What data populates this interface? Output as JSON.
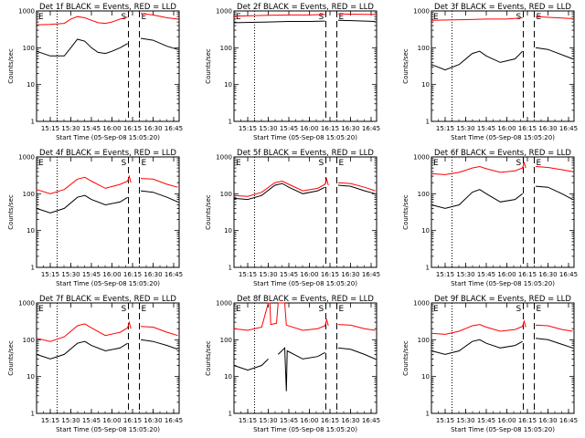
{
  "chart_data": {
    "type": "line",
    "x_ticks": [
      "15:15",
      "15:30",
      "15:45",
      "16:00",
      "16:15",
      "16:30",
      "16:45"
    ],
    "x_range": [
      "15:05",
      "16:49"
    ],
    "y_range": [
      1,
      1000
    ],
    "y_scale": "log",
    "y_ticks": [
      "1",
      "10",
      "100",
      "1000"
    ],
    "y_label": "Counts/sec",
    "x_label": "Start Time (05-Sep-08 15:05:20)",
    "vertical_lines": [
      {
        "time": "15:20",
        "style": "dotted"
      },
      {
        "time": "16:12",
        "style": "dashed",
        "label": "S"
      },
      {
        "time": "16:20",
        "style": "dashed",
        "label": "E"
      }
    ],
    "start_marker": "E",
    "colors": {
      "events": "#000000",
      "lld": "#ff0000"
    },
    "panels": [
      {
        "title": "Det 1f BLACK = Events, RED = LLD",
        "red": [
          [
            15.083,
            420
          ],
          [
            15.25,
            430
          ],
          [
            15.42,
            460
          ],
          [
            15.5,
            600
          ],
          [
            15.58,
            700
          ],
          [
            15.67,
            650
          ],
          [
            15.75,
            560
          ],
          [
            15.83,
            480
          ],
          [
            15.92,
            460
          ],
          [
            16.0,
            500
          ],
          [
            16.1,
            600
          ],
          [
            16.19,
            680
          ],
          [
            16.2,
            null
          ],
          [
            16.25,
            550
          ],
          [
            16.28,
            null
          ],
          [
            16.35,
            850
          ],
          [
            16.5,
            780
          ],
          [
            16.67,
            650
          ],
          [
            16.8,
            600
          ]
        ],
        "black": [
          [
            15.083,
            80
          ],
          [
            15.25,
            60
          ],
          [
            15.42,
            60
          ],
          [
            15.5,
            100
          ],
          [
            15.58,
            170
          ],
          [
            15.67,
            150
          ],
          [
            15.75,
            100
          ],
          [
            15.83,
            75
          ],
          [
            15.92,
            70
          ],
          [
            16.0,
            80
          ],
          [
            16.1,
            100
          ],
          [
            16.19,
            130
          ],
          [
            16.2,
            null
          ],
          [
            16.25,
            100
          ],
          [
            16.28,
            null
          ],
          [
            16.35,
            180
          ],
          [
            16.5,
            160
          ],
          [
            16.67,
            110
          ],
          [
            16.8,
            90
          ]
        ]
      },
      {
        "title": "Det 2f BLACK = Events, RED = LLD",
        "red": [
          [
            15.083,
            720
          ],
          [
            15.5,
            760
          ],
          [
            15.75,
            780
          ],
          [
            16.0,
            780
          ],
          [
            16.19,
            800
          ],
          [
            16.2,
            null
          ],
          [
            16.25,
            820
          ],
          [
            16.28,
            null
          ],
          [
            16.35,
            830
          ],
          [
            16.8,
            800
          ]
        ],
        "black": [
          [
            15.083,
            480
          ],
          [
            15.5,
            500
          ],
          [
            15.75,
            520
          ],
          [
            16.0,
            520
          ],
          [
            16.19,
            530
          ],
          [
            16.2,
            null
          ],
          [
            16.25,
            550
          ],
          [
            16.28,
            null
          ],
          [
            16.35,
            560
          ],
          [
            16.8,
            520
          ]
        ]
      },
      {
        "title": "Det 3f BLACK = Events, RED = LLD",
        "red": [
          [
            15.083,
            560
          ],
          [
            15.5,
            580
          ],
          [
            15.75,
            600
          ],
          [
            16.0,
            600
          ],
          [
            16.19,
            650
          ],
          [
            16.2,
            null
          ],
          [
            16.25,
            680
          ],
          [
            16.28,
            null
          ],
          [
            16.35,
            700
          ],
          [
            16.8,
            620
          ]
        ],
        "black": [
          [
            15.083,
            35
          ],
          [
            15.25,
            25
          ],
          [
            15.42,
            35
          ],
          [
            15.58,
            70
          ],
          [
            15.67,
            80
          ],
          [
            15.75,
            60
          ],
          [
            15.92,
            40
          ],
          [
            16.1,
            50
          ],
          [
            16.19,
            80
          ],
          [
            16.2,
            null
          ],
          [
            16.25,
            60
          ],
          [
            16.28,
            null
          ],
          [
            16.35,
            100
          ],
          [
            16.5,
            90
          ],
          [
            16.8,
            50
          ]
        ]
      },
      {
        "title": "Det 4f BLACK = Events, RED = LLD",
        "red": [
          [
            15.083,
            130
          ],
          [
            15.25,
            100
          ],
          [
            15.42,
            130
          ],
          [
            15.58,
            250
          ],
          [
            15.67,
            280
          ],
          [
            15.75,
            220
          ],
          [
            15.92,
            140
          ],
          [
            16.1,
            180
          ],
          [
            16.19,
            220
          ],
          [
            16.21,
            300
          ],
          [
            16.23,
            200
          ],
          [
            16.25,
            null
          ],
          [
            16.28,
            null
          ],
          [
            16.35,
            260
          ],
          [
            16.5,
            250
          ],
          [
            16.67,
            180
          ],
          [
            16.8,
            150
          ]
        ],
        "black": [
          [
            15.083,
            40
          ],
          [
            15.25,
            30
          ],
          [
            15.42,
            40
          ],
          [
            15.58,
            80
          ],
          [
            15.67,
            90
          ],
          [
            15.75,
            70
          ],
          [
            15.92,
            50
          ],
          [
            16.1,
            60
          ],
          [
            16.19,
            80
          ],
          [
            16.2,
            null
          ],
          [
            16.25,
            60
          ],
          [
            16.28,
            null
          ],
          [
            16.35,
            120
          ],
          [
            16.5,
            110
          ],
          [
            16.67,
            80
          ],
          [
            16.8,
            60
          ]
        ]
      },
      {
        "title": "Det 5f BLACK = Events, RED = LLD",
        "red": [
          [
            15.083,
            90
          ],
          [
            15.25,
            85
          ],
          [
            15.42,
            110
          ],
          [
            15.58,
            200
          ],
          [
            15.67,
            220
          ],
          [
            15.75,
            180
          ],
          [
            15.92,
            120
          ],
          [
            16.1,
            140
          ],
          [
            16.19,
            180
          ],
          [
            16.21,
            250
          ],
          [
            16.23,
            170
          ],
          [
            16.25,
            null
          ],
          [
            16.28,
            null
          ],
          [
            16.35,
            200
          ],
          [
            16.5,
            190
          ],
          [
            16.67,
            150
          ],
          [
            16.8,
            120
          ]
        ],
        "black": [
          [
            15.083,
            75
          ],
          [
            15.25,
            70
          ],
          [
            15.42,
            90
          ],
          [
            15.58,
            170
          ],
          [
            15.67,
            190
          ],
          [
            15.75,
            150
          ],
          [
            15.92,
            100
          ],
          [
            16.1,
            120
          ],
          [
            16.19,
            150
          ],
          [
            16.2,
            null
          ],
          [
            16.25,
            130
          ],
          [
            16.28,
            null
          ],
          [
            16.35,
            170
          ],
          [
            16.5,
            160
          ],
          [
            16.67,
            120
          ],
          [
            16.8,
            100
          ]
        ]
      },
      {
        "title": "Det 6f BLACK = Events, RED = LLD",
        "red": [
          [
            15.083,
            350
          ],
          [
            15.25,
            330
          ],
          [
            15.42,
            380
          ],
          [
            15.58,
            500
          ],
          [
            15.67,
            550
          ],
          [
            15.75,
            480
          ],
          [
            15.92,
            380
          ],
          [
            16.1,
            420
          ],
          [
            16.19,
            500
          ],
          [
            16.21,
            700
          ],
          [
            16.23,
            500
          ],
          [
            16.25,
            null
          ],
          [
            16.28,
            null
          ],
          [
            16.35,
            550
          ],
          [
            16.5,
            520
          ],
          [
            16.67,
            450
          ],
          [
            16.8,
            400
          ]
        ],
        "black": [
          [
            15.083,
            50
          ],
          [
            15.25,
            40
          ],
          [
            15.42,
            50
          ],
          [
            15.58,
            110
          ],
          [
            15.67,
            130
          ],
          [
            15.75,
            100
          ],
          [
            15.92,
            60
          ],
          [
            16.1,
            70
          ],
          [
            16.19,
            100
          ],
          [
            16.2,
            null
          ],
          [
            16.25,
            80
          ],
          [
            16.28,
            null
          ],
          [
            16.35,
            160
          ],
          [
            16.5,
            150
          ],
          [
            16.67,
            100
          ],
          [
            16.8,
            70
          ]
        ]
      },
      {
        "title": "Det 7f BLACK = Events, RED = LLD",
        "red": [
          [
            15.083,
            110
          ],
          [
            15.25,
            90
          ],
          [
            15.42,
            120
          ],
          [
            15.58,
            240
          ],
          [
            15.67,
            270
          ],
          [
            15.75,
            210
          ],
          [
            15.92,
            130
          ],
          [
            16.1,
            160
          ],
          [
            16.19,
            210
          ],
          [
            16.21,
            300
          ],
          [
            16.23,
            200
          ],
          [
            16.25,
            null
          ],
          [
            16.28,
            null
          ],
          [
            16.35,
            230
          ],
          [
            16.5,
            220
          ],
          [
            16.67,
            160
          ],
          [
            16.8,
            130
          ]
        ],
        "black": [
          [
            15.083,
            40
          ],
          [
            15.25,
            30
          ],
          [
            15.42,
            40
          ],
          [
            15.58,
            80
          ],
          [
            15.67,
            90
          ],
          [
            15.75,
            70
          ],
          [
            15.92,
            50
          ],
          [
            16.1,
            60
          ],
          [
            16.19,
            80
          ],
          [
            16.2,
            null
          ],
          [
            16.25,
            60
          ],
          [
            16.28,
            null
          ],
          [
            16.35,
            100
          ],
          [
            16.5,
            90
          ],
          [
            16.67,
            70
          ],
          [
            16.8,
            55
          ]
        ]
      },
      {
        "title": "Det 8f BLACK = Events, RED = LLD",
        "red": [
          [
            15.083,
            200
          ],
          [
            15.25,
            180
          ],
          [
            15.42,
            220
          ],
          [
            15.5,
            1000
          ],
          [
            15.52,
            1000
          ],
          [
            15.53,
            260
          ],
          [
            15.6,
            280
          ],
          [
            15.62,
            1000
          ],
          [
            15.7,
            1000
          ],
          [
            15.72,
            250
          ],
          [
            15.92,
            180
          ],
          [
            16.1,
            200
          ],
          [
            16.19,
            240
          ],
          [
            16.21,
            350
          ],
          [
            16.23,
            240
          ],
          [
            16.25,
            null
          ],
          [
            16.28,
            null
          ],
          [
            16.35,
            260
          ],
          [
            16.5,
            250
          ],
          [
            16.67,
            200
          ],
          [
            16.8,
            180
          ]
        ],
        "black": [
          [
            15.083,
            20
          ],
          [
            15.25,
            15
          ],
          [
            15.42,
            20
          ],
          [
            15.5,
            30
          ],
          [
            15.52,
            null
          ],
          [
            15.6,
            null
          ],
          [
            15.62,
            40
          ],
          [
            15.7,
            60
          ],
          [
            15.72,
            4
          ],
          [
            15.73,
            50
          ],
          [
            15.92,
            30
          ],
          [
            16.1,
            35
          ],
          [
            16.19,
            45
          ],
          [
            16.2,
            null
          ],
          [
            16.25,
            35
          ],
          [
            16.28,
            null
          ],
          [
            16.35,
            60
          ],
          [
            16.5,
            55
          ],
          [
            16.67,
            40
          ],
          [
            16.8,
            30
          ]
        ]
      },
      {
        "title": "Det 9f BLACK = Events, RED = LLD",
        "red": [
          [
            15.083,
            150
          ],
          [
            15.25,
            140
          ],
          [
            15.42,
            170
          ],
          [
            15.58,
            240
          ],
          [
            15.67,
            260
          ],
          [
            15.75,
            220
          ],
          [
            15.92,
            170
          ],
          [
            16.1,
            190
          ],
          [
            16.19,
            230
          ],
          [
            16.21,
            320
          ],
          [
            16.23,
            220
          ],
          [
            16.25,
            null
          ],
          [
            16.28,
            null
          ],
          [
            16.35,
            250
          ],
          [
            16.5,
            240
          ],
          [
            16.67,
            190
          ],
          [
            16.8,
            170
          ]
        ],
        "black": [
          [
            15.083,
            50
          ],
          [
            15.25,
            40
          ],
          [
            15.42,
            50
          ],
          [
            15.58,
            90
          ],
          [
            15.67,
            100
          ],
          [
            15.75,
            80
          ],
          [
            15.92,
            60
          ],
          [
            16.1,
            70
          ],
          [
            16.19,
            90
          ],
          [
            16.2,
            null
          ],
          [
            16.25,
            70
          ],
          [
            16.28,
            null
          ],
          [
            16.35,
            110
          ],
          [
            16.5,
            100
          ],
          [
            16.67,
            75
          ],
          [
            16.8,
            60
          ]
        ]
      }
    ]
  }
}
